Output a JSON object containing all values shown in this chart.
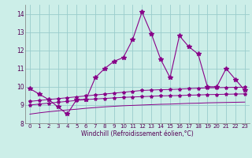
{
  "x": [
    0,
    1,
    2,
    3,
    4,
    5,
    6,
    7,
    8,
    9,
    10,
    11,
    12,
    13,
    14,
    15,
    16,
    17,
    18,
    19,
    20,
    21,
    22,
    23
  ],
  "line_main": [
    9.9,
    9.6,
    9.3,
    8.9,
    8.5,
    9.3,
    9.3,
    10.5,
    11.0,
    11.4,
    11.6,
    12.6,
    14.1,
    12.9,
    11.5,
    10.5,
    12.8,
    12.2,
    11.8,
    10.0,
    10.0,
    11.0,
    10.4,
    9.8
  ],
  "line_upper": [
    9.2,
    9.25,
    9.3,
    9.35,
    9.4,
    9.45,
    9.5,
    9.55,
    9.6,
    9.65,
    9.7,
    9.75,
    9.8,
    9.82,
    9.84,
    9.85,
    9.87,
    9.9,
    9.92,
    9.94,
    9.95,
    9.96,
    9.97,
    9.98
  ],
  "line_mid": [
    9.0,
    9.05,
    9.1,
    9.15,
    9.2,
    9.25,
    9.3,
    9.33,
    9.36,
    9.39,
    9.42,
    9.44,
    9.46,
    9.48,
    9.5,
    9.51,
    9.52,
    9.54,
    9.55,
    9.57,
    9.58,
    9.59,
    9.6,
    9.61
  ],
  "line_lower": [
    8.5,
    8.57,
    8.63,
    8.68,
    8.73,
    8.77,
    8.82,
    8.86,
    8.9,
    8.93,
    8.96,
    8.98,
    9.0,
    9.02,
    9.04,
    9.05,
    9.07,
    9.09,
    9.1,
    9.12,
    9.13,
    9.14,
    9.15,
    9.16
  ],
  "bg_color": "#cceee8",
  "grid_color": "#99cccc",
  "line_color": "#880088",
  "ylim": [
    8.0,
    14.5
  ],
  "yticks": [
    8,
    9,
    10,
    11,
    12,
    13,
    14
  ],
  "xlim": [
    -0.5,
    23.5
  ],
  "xticks": [
    0,
    1,
    2,
    3,
    4,
    5,
    6,
    7,
    8,
    9,
    10,
    11,
    12,
    13,
    14,
    15,
    16,
    17,
    18,
    19,
    20,
    21,
    22,
    23
  ],
  "xlabel": "Windchill (Refroidissement éolien,°C)",
  "marker": "*",
  "markersize": 4
}
